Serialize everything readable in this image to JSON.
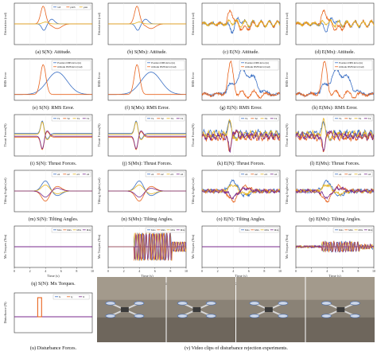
{
  "figure": {
    "rows": [
      {
        "ylabel": "Orientation (rad)",
        "panels": [
          {
            "id": "a",
            "caption": "(a) S(N): Attitude."
          },
          {
            "id": "b",
            "caption": "(b) S(Mx): Attitude."
          },
          {
            "id": "c",
            "caption": "(c) E(N): Attitude."
          },
          {
            "id": "d",
            "caption": "(d) E(Mx): Attitude."
          }
        ],
        "legend": [
          "roll",
          "pitch",
          "yaw"
        ]
      },
      {
        "ylabel": "RMS Error",
        "panels": [
          {
            "id": "e",
            "caption": "(e) S(N): RMS Error."
          },
          {
            "id": "f",
            "caption": "(f) S(Mx): RMS Error."
          },
          {
            "id": "g",
            "caption": "(g) E(N): RMS Error."
          },
          {
            "id": "h",
            "caption": "(h) E(Mx): RMS Error."
          }
        ],
        "legend": [
          "Position RMS Error(m)",
          "Attitude RMS Error(rad)"
        ]
      },
      {
        "ylabel": "Thrust Forces(N)",
        "panels": [
          {
            "id": "i",
            "caption": "(i) S(N): Thrust Forces."
          },
          {
            "id": "j",
            "caption": "(j) S(Mx): Thrust Forces."
          },
          {
            "id": "k",
            "caption": "(k) E(N): Thrust Forces."
          },
          {
            "id": "l",
            "caption": "(l) E(Mx): Thrust Forces."
          }
        ],
        "legend": [
          "T1",
          "T2",
          "T3",
          "T4"
        ]
      },
      {
        "ylabel": "Tilting Angles (rad)",
        "panels": [
          {
            "id": "m",
            "caption": "(m) S(N): Tilting Angles."
          },
          {
            "id": "n",
            "caption": "(n) S(Mx): Tilting Angles."
          },
          {
            "id": "o",
            "caption": "(o) E(N): Tilting Angles."
          },
          {
            "id": "p",
            "caption": "(p) E(Mx): Tilting Angles."
          }
        ],
        "legend": [
          "α1",
          "α2",
          "α3",
          "α4"
        ]
      },
      {
        "ylabel": "Mx Torques (Nm)",
        "panels": [
          {
            "id": "q",
            "caption": "(q) S(N): Mx Torques."
          },
          {
            "id": "r",
            "caption": "(r) S(Mx): Mx Torques."
          },
          {
            "id": "s",
            "caption": "(s) E(N): Mx Torques."
          },
          {
            "id": "t",
            "caption": "(t) E(Mx): Mx Torques."
          }
        ],
        "legend": [
          "M1x",
          "M2x",
          "M3x",
          "M4x"
        ],
        "xlabel": "Time (s)",
        "xticks": [
          "0",
          "2",
          "4",
          "6",
          "8",
          "10"
        ]
      }
    ],
    "disturbance": {
      "ylabel": "Disturbance (N)",
      "caption": "(u) Disturbance Forces.",
      "legend": [
        "fx",
        "fy",
        "fz"
      ]
    },
    "video_caption": "(v) Video clips of disturbance rejection experiments.",
    "colors": {
      "blue": "#3a6fc4",
      "orange": "#e8641e",
      "yellow": "#e6b21e",
      "purple": "#7a2a8c",
      "green": "#77ac30"
    }
  },
  "chart_data": [
    {
      "panel": "a",
      "type": "line",
      "x": [
        0,
        2,
        3,
        3.5,
        4,
        4.5,
        5,
        6,
        8,
        10
      ],
      "series": [
        {
          "name": "roll",
          "values": [
            0,
            0,
            0,
            -0.1,
            -0.4,
            -0.3,
            -0.1,
            0,
            0,
            0
          ]
        },
        {
          "name": "pitch",
          "values": [
            0,
            0,
            0.1,
            0.3,
            0.9,
            0.6,
            0.3,
            0.1,
            0,
            0
          ]
        },
        {
          "name": "yaw",
          "values": [
            0,
            0,
            0,
            0,
            0.05,
            0,
            0,
            0,
            0,
            0
          ]
        }
      ]
    },
    {
      "panel": "e",
      "type": "line",
      "x": [
        0,
        2,
        3,
        3.5,
        4,
        5,
        6,
        7,
        8,
        10
      ],
      "series": [
        {
          "name": "Position RMS Error(m)",
          "values": [
            0,
            0,
            0.05,
            0.2,
            0.5,
            0.6,
            0.55,
            0.3,
            0.05,
            0
          ]
        },
        {
          "name": "Attitude RMS Error(rad)",
          "values": [
            0,
            0,
            0.1,
            0.5,
            0.9,
            0.4,
            0.2,
            0.05,
            0,
            0
          ]
        }
      ]
    }
  ]
}
